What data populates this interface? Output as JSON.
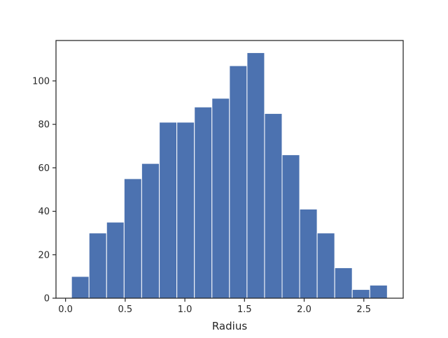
{
  "chart_data": {
    "type": "bar",
    "subtype": "histogram",
    "title": "",
    "xlabel": "Radius",
    "ylabel": "",
    "bin_edges": [
      0.05,
      0.197,
      0.344,
      0.491,
      0.638,
      0.786,
      0.933,
      1.08,
      1.227,
      1.374,
      1.521,
      1.668,
      1.815,
      1.962,
      2.109,
      2.256,
      2.403,
      2.55,
      2.697
    ],
    "values": [
      10,
      30,
      35,
      55,
      62,
      81,
      81,
      88,
      92,
      107,
      113,
      85,
      66,
      41,
      30,
      14,
      4,
      6
    ],
    "xlim": [
      -0.08,
      2.83
    ],
    "ylim": [
      0,
      118.6
    ],
    "x_ticks": [
      0.0,
      0.5,
      1.0,
      1.5,
      2.0,
      2.5
    ],
    "x_tick_labels": [
      "0.0",
      "0.5",
      "1.0",
      "1.5",
      "2.0",
      "2.5"
    ],
    "y_ticks": [
      0,
      20,
      40,
      60,
      80,
      100
    ],
    "y_tick_labels": [
      "0",
      "20",
      "40",
      "60",
      "80",
      "100"
    ],
    "grid": false,
    "legend": "none",
    "bar_color": "#4c72b0",
    "bar_edge_color": "#ffffff",
    "axis_color": "#262626"
  }
}
